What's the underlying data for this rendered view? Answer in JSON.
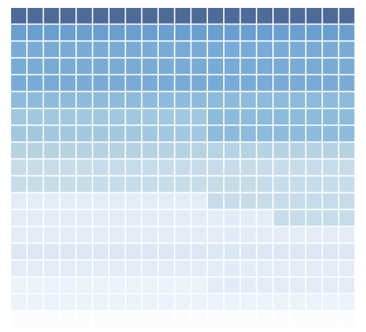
{
  "chart_data": {
    "type": "heatmap",
    "title": "",
    "xlabel": "",
    "ylabel": "",
    "n_cols": 21,
    "n_rows": 19,
    "grid": true,
    "palette": [
      "#fafcfe",
      "#ebf2fa",
      "#e3ecf6",
      "#dbe7f3",
      "#c6dcea",
      "#b6d3e4",
      "#a2c8df",
      "#8dbbdb",
      "#78acd6",
      "#6a9fd0",
      "#4e6b98"
    ],
    "values": [
      [
        10,
        10,
        10,
        10,
        10,
        10,
        10,
        10,
        10,
        10,
        10,
        10,
        10,
        10,
        10,
        10,
        10,
        10,
        10,
        10,
        10
      ],
      [
        9,
        9,
        9,
        9,
        9,
        9,
        9,
        9,
        9,
        9,
        9,
        9,
        9,
        9,
        9,
        9,
        9,
        9,
        9,
        9,
        9
      ],
      [
        8,
        8,
        8,
        8,
        8,
        8,
        8,
        8,
        8,
        8,
        8,
        8,
        8,
        8,
        8,
        8,
        8,
        8,
        8,
        8,
        8
      ],
      [
        8,
        8,
        8,
        8,
        8,
        8,
        8,
        8,
        8,
        8,
        8,
        8,
        8,
        8,
        8,
        8,
        8,
        8,
        8,
        8,
        8
      ],
      [
        8,
        8,
        8,
        8,
        8,
        8,
        8,
        8,
        8,
        8,
        8,
        8,
        8,
        8,
        8,
        8,
        8,
        8,
        8,
        8,
        8
      ],
      [
        7,
        7,
        7,
        7,
        7,
        7,
        7,
        7,
        7,
        7,
        7,
        7,
        7,
        7,
        7,
        7,
        7,
        7,
        7,
        7,
        7
      ],
      [
        6,
        6,
        6,
        6,
        6,
        6,
        6,
        6,
        6,
        6,
        6,
        6,
        7,
        7,
        7,
        7,
        7,
        7,
        7,
        7,
        7
      ],
      [
        6,
        6,
        6,
        6,
        6,
        6,
        6,
        6,
        6,
        6,
        6,
        6,
        7,
        7,
        7,
        7,
        7,
        7,
        7,
        7,
        7
      ],
      [
        5,
        5,
        5,
        5,
        5,
        5,
        5,
        5,
        5,
        5,
        5,
        5,
        5,
        5,
        5,
        5,
        5,
        5,
        5,
        5,
        5
      ],
      [
        4,
        4,
        4,
        4,
        4,
        4,
        4,
        4,
        4,
        4,
        4,
        4,
        4,
        4,
        4,
        4,
        4,
        4,
        4,
        4,
        4
      ],
      [
        4,
        4,
        4,
        4,
        4,
        4,
        4,
        4,
        4,
        4,
        4,
        4,
        4,
        4,
        4,
        4,
        4,
        4,
        4,
        4,
        4
      ],
      [
        2,
        2,
        2,
        2,
        2,
        2,
        2,
        2,
        2,
        2,
        2,
        2,
        4,
        4,
        4,
        4,
        4,
        4,
        4,
        4,
        4
      ],
      [
        2,
        2,
        2,
        2,
        2,
        2,
        2,
        2,
        2,
        2,
        2,
        2,
        2,
        2,
        2,
        2,
        4,
        4,
        4,
        4,
        4
      ],
      [
        2,
        2,
        2,
        2,
        2,
        2,
        2,
        2,
        2,
        2,
        2,
        2,
        2,
        2,
        2,
        2,
        2,
        2,
        2,
        2,
        2
      ],
      [
        3,
        3,
        3,
        3,
        3,
        3,
        3,
        3,
        3,
        3,
        3,
        3,
        3,
        3,
        3,
        3,
        3,
        3,
        3,
        3,
        3
      ],
      [
        2,
        2,
        2,
        2,
        2,
        2,
        2,
        2,
        2,
        2,
        2,
        2,
        2,
        2,
        2,
        2,
        2,
        2,
        2,
        2,
        2
      ],
      [
        1,
        1,
        1,
        1,
        1,
        1,
        1,
        1,
        1,
        1,
        1,
        1,
        2,
        2,
        2,
        2,
        2,
        2,
        2,
        2,
        2
      ],
      [
        1,
        1,
        1,
        1,
        1,
        1,
        1,
        1,
        1,
        1,
        1,
        1,
        1,
        1,
        1,
        1,
        1,
        1,
        1,
        1,
        1
      ],
      [
        0,
        0,
        0,
        0,
        0,
        0,
        0,
        0,
        0,
        0,
        0,
        0,
        0,
        0,
        0,
        0,
        0,
        0,
        0,
        0,
        0
      ]
    ]
  }
}
